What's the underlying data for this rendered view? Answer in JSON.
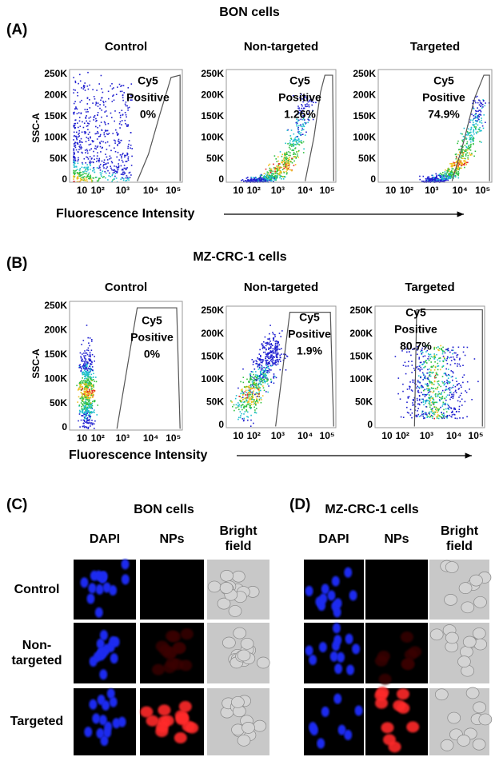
{
  "panel_a": {
    "label": "(A)",
    "title": "BON cells",
    "y_axis_label": "SSC-A",
    "x_axis_label": "Fluorescence Intensity",
    "yticks": [
      "250K",
      "200K",
      "150K",
      "100K",
      "50K",
      "0"
    ],
    "xticks": [
      "10",
      "10²",
      "10³",
      "10⁴",
      "10⁵"
    ],
    "plots": [
      {
        "title": "Control",
        "gate_label": [
          "Cy5",
          "Positive",
          "0%"
        ]
      },
      {
        "title": "Non-targeted",
        "gate_label": [
          "Cy5",
          "Positive",
          "1.26%"
        ]
      },
      {
        "title": "Targeted",
        "gate_label": [
          "Cy5",
          "Positive",
          "74.9%"
        ]
      }
    ]
  },
  "panel_b": {
    "label": "(B)",
    "title": "MZ-CRC-1 cells",
    "y_axis_label": "SSC-A",
    "x_axis_label": "Fluorescence Intensity",
    "yticks": [
      "250K",
      "200K",
      "150K",
      "100K",
      "50K",
      "0"
    ],
    "xticks": [
      "10",
      "10²",
      "10³",
      "10⁴",
      "10⁵"
    ],
    "plots": [
      {
        "title": "Control",
        "gate_label": [
          "Cy5",
          "Positive",
          "0%"
        ]
      },
      {
        "title": "Non-targeted",
        "gate_label": [
          "Cy5",
          "Positive",
          "1.9%"
        ]
      },
      {
        "title": "Targeted",
        "gate_label": [
          "Cy5",
          "Positive",
          "80.7%"
        ]
      }
    ]
  },
  "panel_c": {
    "label": "(C)",
    "title": "BON cells",
    "columns": [
      "DAPI",
      "NPs",
      "Bright field"
    ],
    "rows": [
      "Control",
      "Non-targeted",
      "Targeted"
    ]
  },
  "panel_d": {
    "label": "(D)",
    "title": "MZ-CRC-1 cells",
    "columns": [
      "DAPI",
      "NPs",
      "Bright field"
    ]
  }
}
